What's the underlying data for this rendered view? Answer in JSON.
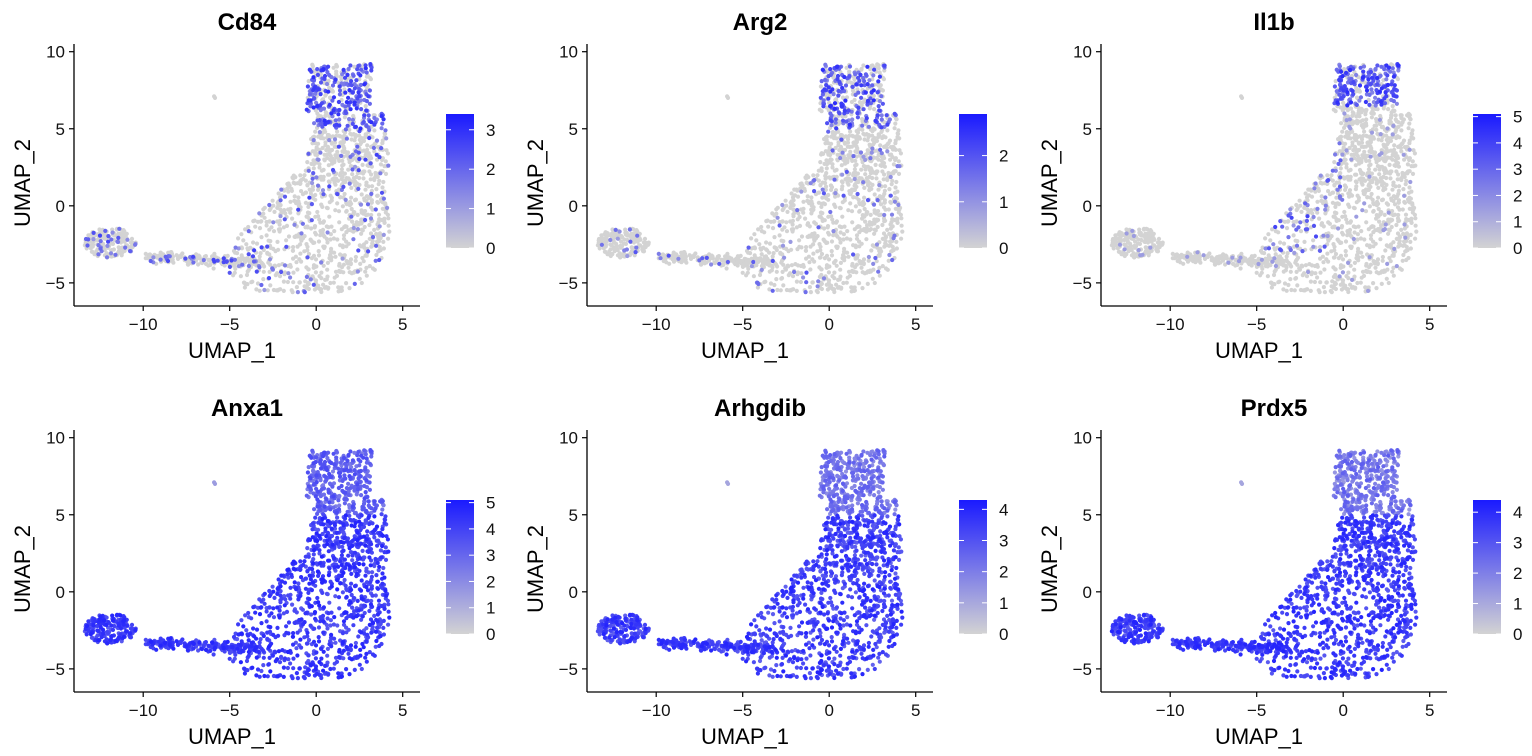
{
  "figure": {
    "colors": {
      "low": "#d3d3d3",
      "high": "#1a1aff"
    }
  },
  "chart_data": [
    {
      "type": "scatter",
      "title": "Cd84",
      "xlabel": "UMAP_1",
      "ylabel": "UMAP_2",
      "xlim": [
        -14,
        6
      ],
      "ylim": [
        -6.5,
        10.5
      ],
      "xticks": [
        -10,
        -5,
        0,
        5
      ],
      "yticks": [
        -5,
        0,
        5,
        10
      ],
      "grid": false,
      "legend": {
        "position": "right",
        "min": 0,
        "max": 3.4,
        "ticks": [
          0,
          1,
          2,
          3
        ]
      },
      "expression_pattern": "sparse, enriched in upper arm"
    },
    {
      "type": "scatter",
      "title": "Arg2",
      "xlabel": "UMAP_1",
      "ylabel": "UMAP_2",
      "xlim": [
        -14,
        6
      ],
      "ylim": [
        -6.5,
        10.5
      ],
      "xticks": [
        -10,
        -5,
        0,
        5
      ],
      "yticks": [
        -5,
        0,
        5,
        10
      ],
      "grid": false,
      "legend": {
        "position": "right",
        "min": 0,
        "max": 2.9,
        "ticks": [
          0,
          1,
          2
        ]
      },
      "expression_pattern": "sparse, enriched in upper arm"
    },
    {
      "type": "scatter",
      "title": "Il1b",
      "xlabel": "UMAP_1",
      "ylabel": "UMAP_2",
      "xlim": [
        -14,
        6
      ],
      "ylim": [
        -6.5,
        10.5
      ],
      "xticks": [
        -10,
        -5,
        0,
        5
      ],
      "yticks": [
        -5,
        0,
        5,
        10
      ],
      "grid": false,
      "legend": {
        "position": "right",
        "min": 0,
        "max": 5.1,
        "ticks": [
          0,
          1,
          2,
          3,
          4,
          5
        ]
      },
      "expression_pattern": "high at top of upper arm and left-middle band"
    },
    {
      "type": "scatter",
      "title": "Anxa1",
      "xlabel": "UMAP_1",
      "ylabel": "UMAP_2",
      "xlim": [
        -14,
        6
      ],
      "ylim": [
        -6.5,
        10.5
      ],
      "xticks": [
        -10,
        -5,
        0,
        5
      ],
      "yticks": [
        -5,
        0,
        5,
        10
      ],
      "grid": false,
      "legend": {
        "position": "right",
        "min": 0,
        "max": 5.1,
        "ticks": [
          0,
          1,
          2,
          3,
          4,
          5
        ]
      },
      "expression_pattern": "broadly high, slightly lower at top"
    },
    {
      "type": "scatter",
      "title": "Arhgdib",
      "xlabel": "UMAP_1",
      "ylabel": "UMAP_2",
      "xlim": [
        -14,
        6
      ],
      "ylim": [
        -6.5,
        10.5
      ],
      "xticks": [
        -10,
        -5,
        0,
        5
      ],
      "yticks": [
        -5,
        0,
        5,
        10
      ],
      "grid": false,
      "legend": {
        "position": "right",
        "min": 0,
        "max": 4.3,
        "ticks": [
          0,
          1,
          2,
          3,
          4
        ]
      },
      "expression_pattern": "broadly high, lower at top"
    },
    {
      "type": "scatter",
      "title": "Prdx5",
      "xlabel": "UMAP_1",
      "ylabel": "UMAP_2",
      "xlim": [
        -14,
        6
      ],
      "ylim": [
        -6.5,
        10.5
      ],
      "xticks": [
        -10,
        -5,
        0,
        5
      ],
      "yticks": [
        -5,
        0,
        5,
        10
      ],
      "grid": false,
      "legend": {
        "position": "right",
        "min": 0,
        "max": 4.4,
        "ticks": [
          0,
          1,
          2,
          3,
          4
        ]
      },
      "expression_pattern": "broadly high, lighter at top"
    }
  ]
}
